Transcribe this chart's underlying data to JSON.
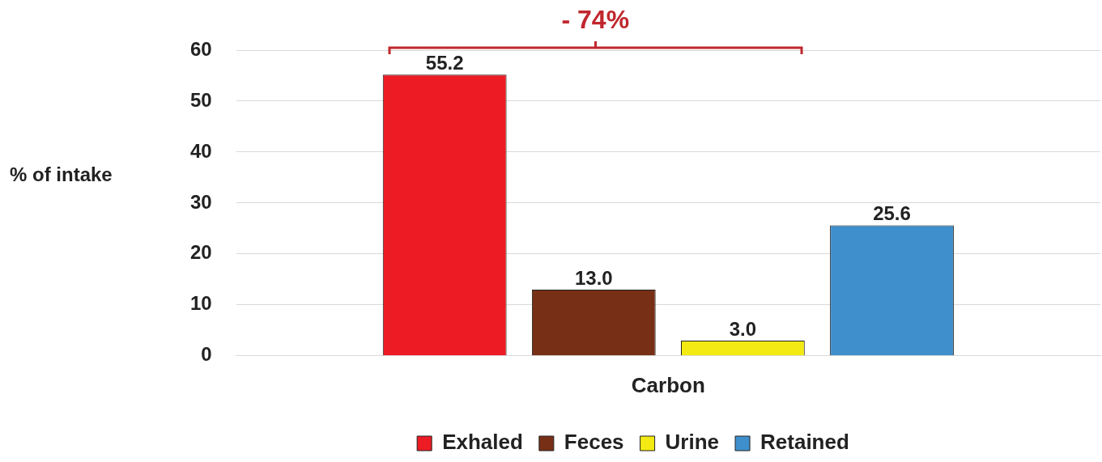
{
  "chart_data": {
    "type": "bar",
    "ylabel": "% of intake",
    "categories": [
      "Carbon"
    ],
    "series": [
      {
        "name": "Exhaled",
        "color": "#ed1c24",
        "values": [
          55.2
        ],
        "value_labels": [
          "55.2"
        ]
      },
      {
        "name": "Feces",
        "color": "#772f16",
        "values": [
          13.0
        ],
        "value_labels": [
          "13.0"
        ]
      },
      {
        "name": "Urine",
        "color": "#f2ea12",
        "values": [
          3.0
        ],
        "value_labels": [
          "3.0"
        ]
      },
      {
        "name": "Retained",
        "color": "#3f8fcc",
        "values": [
          25.6
        ],
        "value_labels": [
          "25.6"
        ]
      }
    ],
    "ylim": [
      0,
      60
    ],
    "yticks": [
      0,
      10,
      20,
      30,
      40,
      50,
      60
    ],
    "grid": "y",
    "legend": "bottom",
    "annotations": [
      "- 74%"
    ]
  }
}
